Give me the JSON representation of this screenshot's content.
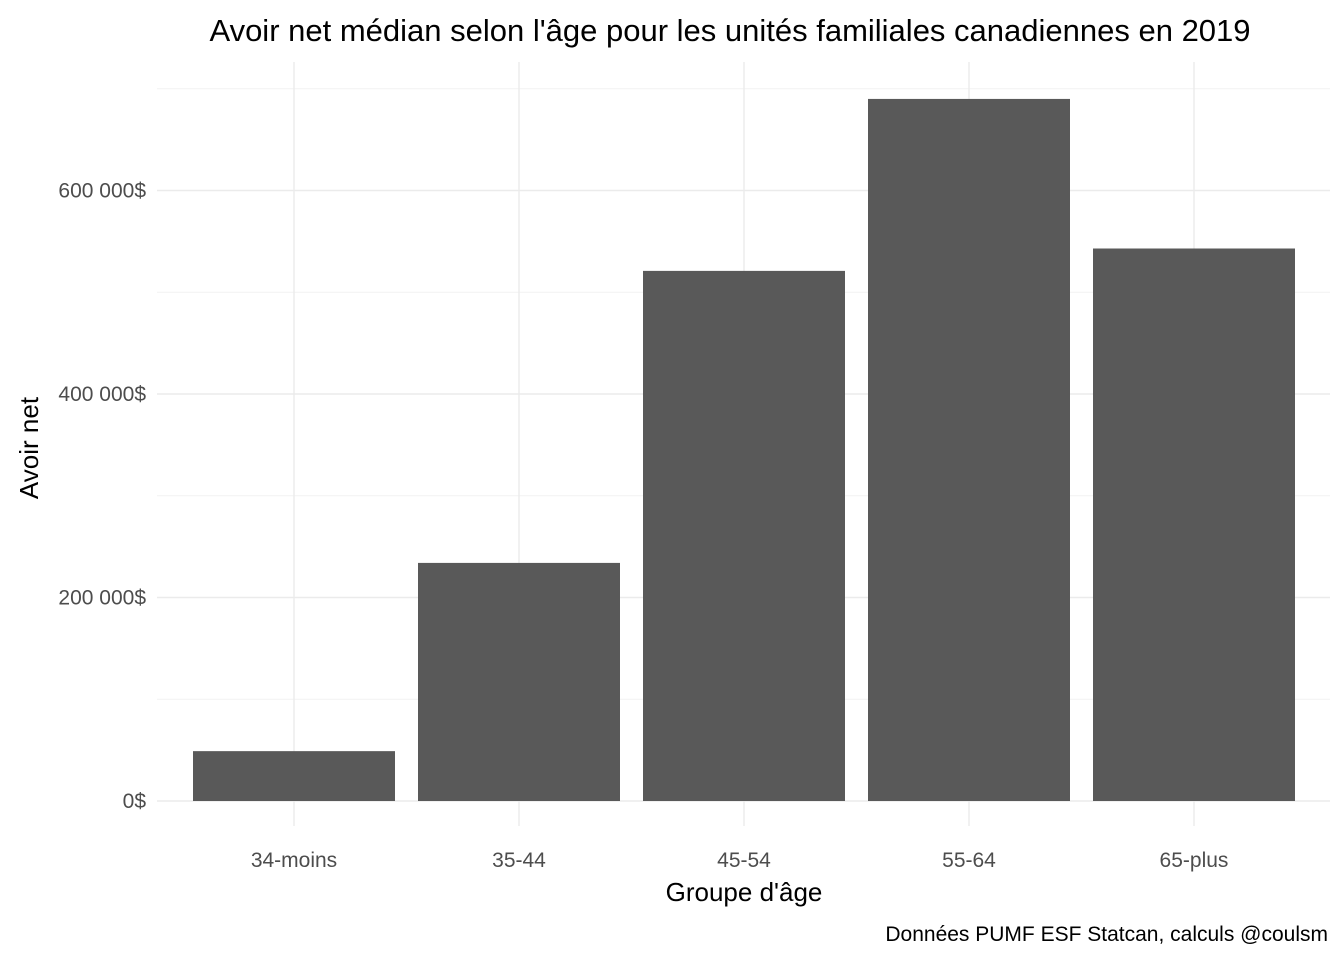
{
  "chart_data": {
    "type": "bar",
    "title": "Avoir net médian selon l'âge pour les unités familiales canadiennes en 2019",
    "xlabel": "Groupe d'âge",
    "ylabel": "Avoir net",
    "caption": "Données PUMF ESF Statcan, calculs @coulsm",
    "categories": [
      "34-moins",
      "35-44",
      "45-54",
      "55-64",
      "65-plus"
    ],
    "values": [
      49000,
      234000,
      521000,
      690000,
      543000
    ],
    "ylim": [
      0,
      700000
    ],
    "y_ticks": [
      {
        "value": 0,
        "label": "0$"
      },
      {
        "value": 200000,
        "label": "200 000$"
      },
      {
        "value": 400000,
        "label": "400 000$"
      },
      {
        "value": 600000,
        "label": "600 000$"
      }
    ],
    "y_minor_ticks": [
      100000,
      300000,
      500000,
      700000
    ],
    "bar_color": "#595959",
    "grid_color": "#ebebeb",
    "grid": true,
    "legend": "none"
  }
}
